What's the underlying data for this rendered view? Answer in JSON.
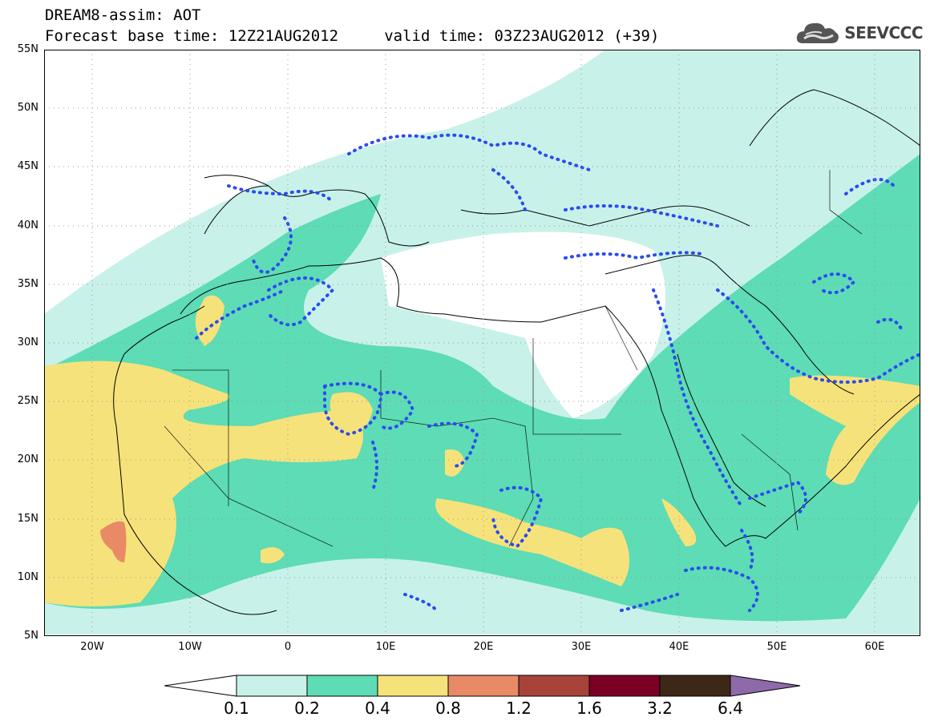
{
  "title": {
    "line1": "DREAM8-assim: AOT",
    "line2": "Forecast base time: 12Z21AUG2012     valid time: 03Z23AUG2012 (+39)"
  },
  "logo": {
    "text": "SEEVCCC",
    "icon": "cloud-icon"
  },
  "map": {
    "projection": "lat-lon",
    "lon_range": [
      -25,
      65
    ],
    "lat_range": [
      5,
      55
    ],
    "grid": "dotted",
    "y_ticks": [
      "55N",
      "50N",
      "45N",
      "40N",
      "35N",
      "30N",
      "25N",
      "20N",
      "15N",
      "10N",
      "5N"
    ],
    "x_ticks": [
      "20W",
      "10W",
      "0",
      "10E",
      "20E",
      "30E",
      "40E",
      "50E",
      "60E"
    ]
  },
  "legend": {
    "labels": [
      "0.1",
      "0.2",
      "0.4",
      "0.8",
      "1.2",
      "1.6",
      "3.2",
      "6.4"
    ],
    "colors": [
      "#ffffff",
      "#c8f1ea",
      "#5ddcb5",
      "#f6e27a",
      "#e98a67",
      "#a8433a",
      "#7a0024",
      "#3d2817",
      "#8e6aaa"
    ]
  }
}
